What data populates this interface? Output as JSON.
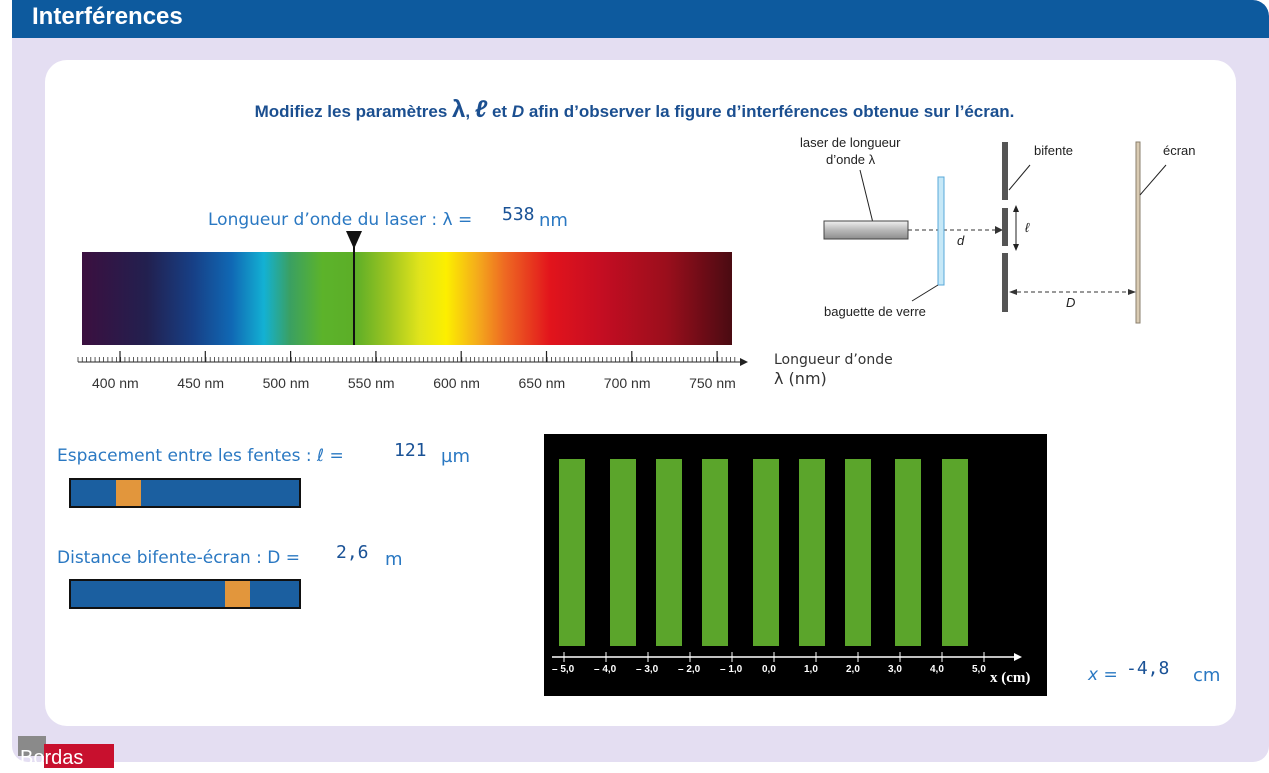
{
  "app": {
    "title": "Interférences"
  },
  "instruction": {
    "prefix": "Modifiez les paramètres ",
    "sym_lambda": "λ",
    "sep": ", ",
    "sym_ell": "ℓ",
    "mid": " et ",
    "sym_D": "D",
    "suffix": " afin d’observer la figure d’interférences obtenue sur l’écran."
  },
  "wavelength": {
    "label": "Longueur d’onde  du laser : λ =",
    "value": "538",
    "unit": "nm",
    "fraction": 0.423
  },
  "spectrum_axis": {
    "ticks": [
      "400 nm",
      "450 nm",
      "500 nm",
      "550 nm",
      "600 nm",
      "650 nm",
      "700 nm",
      "750 nm"
    ],
    "title_line1": "Longueur d’onde",
    "title_line2": "λ (nm)"
  },
  "slit_spacing": {
    "label": "Espacement entre les fentes : ℓ =",
    "value": "121",
    "unit": "µm",
    "fraction": 0.22
  },
  "distance": {
    "label": "Distance bifente-écran : D =",
    "value": "2,6",
    "unit": "m",
    "fraction": 0.76
  },
  "diagram": {
    "laser_label_1": "laser de longueur",
    "laser_label_2": "d’onde λ",
    "bifente": "bifente",
    "ecran": "écran",
    "ell": "ℓ",
    "d": "d",
    "D": "D",
    "baguette": "baguette de verre"
  },
  "screen": {
    "axis_ticks": [
      "– 5,0",
      "– 4,0",
      "– 3,0",
      "– 2,0",
      "– 1,0",
      "0,0",
      "1,0",
      "2,0",
      "3,0",
      "4,0",
      "5,0"
    ],
    "axis_title": "x (cm)",
    "fringe_positions_cm": [
      -4.8,
      -3.6,
      -2.5,
      -1.4,
      -0.2,
      0.9,
      2.0,
      3.2,
      4.3
    ]
  },
  "cursor": {
    "label": "x =",
    "value": "-4,8",
    "unit": "cm"
  },
  "logo": {
    "text": "Bordas"
  }
}
